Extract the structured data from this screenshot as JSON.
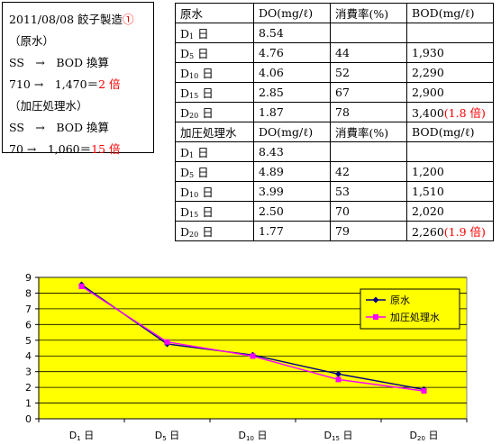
{
  "note": {
    "line1": "2011/08/08 餃子製造",
    "line1_mark": "①",
    "line2": "（原水）",
    "line3": "SS　→　BOD 換算",
    "line4_pre": "710 →　1,470＝",
    "line4_val": "2 倍",
    "line5": "（加圧処理水）",
    "line6": "SS　→　BOD 換算",
    "line7_pre": "70 →　1,060＝",
    "line7_val": "15 倍"
  },
  "table": {
    "raw": {
      "header": [
        "原水",
        "DO(mg/ℓ)",
        "消費率(%)",
        "BOD(mg/ℓ)"
      ],
      "rows": [
        {
          "label": "D",
          "sub": "1",
          "day": "日",
          "do": "8.54",
          "rate": "",
          "bod": "",
          "ratio": ""
        },
        {
          "label": "D",
          "sub": "5",
          "day": "日",
          "do": "4.76",
          "rate": "44",
          "bod": "1,930",
          "ratio": ""
        },
        {
          "label": "D",
          "sub": "10",
          "day": "日",
          "do": "4.06",
          "rate": "52",
          "bod": "2,290",
          "ratio": ""
        },
        {
          "label": "D",
          "sub": "15",
          "day": "日",
          "do": "2.85",
          "rate": "67",
          "bod": "2,900",
          "ratio": ""
        },
        {
          "label": "D",
          "sub": "20",
          "day": "日",
          "do": "1.87",
          "rate": "78",
          "bod": "3,400",
          "ratio": "(1.8 倍)"
        }
      ]
    },
    "pressurized": {
      "header": [
        "加圧処理水",
        "DO(mg/ℓ)",
        "消費率(%)",
        "BOD(mg/ℓ)"
      ],
      "rows": [
        {
          "label": "D",
          "sub": "1",
          "day": "日",
          "do": "8.43",
          "rate": "",
          "bod": "",
          "ratio": ""
        },
        {
          "label": "D",
          "sub": "5",
          "day": "日",
          "do": "4.89",
          "rate": "42",
          "bod": "1,200",
          "ratio": ""
        },
        {
          "label": "D",
          "sub": "10",
          "day": "日",
          "do": "3.99",
          "rate": "53",
          "bod": "1,510",
          "ratio": ""
        },
        {
          "label": "D",
          "sub": "15",
          "day": "日",
          "do": "2.50",
          "rate": "70",
          "bod": "2,020",
          "ratio": ""
        },
        {
          "label": "D",
          "sub": "20",
          "day": "日",
          "do": "1.77",
          "rate": "79",
          "bod": "2,260",
          "ratio": "(1.9 倍)"
        }
      ]
    }
  },
  "chart_data": {
    "type": "line",
    "categories": [
      "D1 日",
      "D5 日",
      "D10 日",
      "D15 日",
      "D20 日"
    ],
    "category_parts": [
      [
        "D",
        "1",
        "日"
      ],
      [
        "D",
        "5",
        "日"
      ],
      [
        "D",
        "10",
        "日"
      ],
      [
        "D",
        "15",
        "日"
      ],
      [
        "D",
        "20",
        "日"
      ]
    ],
    "series": [
      {
        "name": "原水",
        "values": [
          8.54,
          4.76,
          4.06,
          2.85,
          1.87
        ],
        "color": "#000080",
        "marker": "diamond"
      },
      {
        "name": "加圧処理水",
        "values": [
          8.43,
          4.89,
          3.99,
          2.5,
          1.77
        ],
        "color": "#ff00ff",
        "marker": "square"
      }
    ],
    "ylim": [
      0,
      9
    ],
    "yticks": [
      "0",
      "1",
      "2",
      "3",
      "4",
      "5",
      "6",
      "7",
      "8",
      "9"
    ],
    "plot_background": "#ffff00",
    "grid": true,
    "legend": "right"
  }
}
